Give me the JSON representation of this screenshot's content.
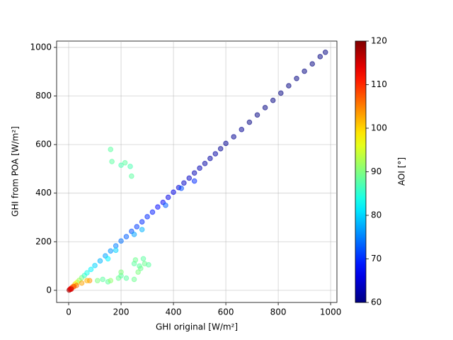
{
  "chart_data": {
    "type": "scatter",
    "x_label": "GHI original [W/m²]",
    "y_label": "GHI from POA [W/m²]",
    "colorbar_label": "AOI [°]",
    "xlim": [
      -46,
      1024
    ],
    "ylim": [
      -50,
      1026
    ],
    "xticks": [
      0,
      200,
      400,
      600,
      800,
      1000
    ],
    "yticks": [
      0,
      200,
      400,
      600,
      800,
      1000
    ],
    "clim": [
      60,
      120
    ],
    "cticks": [
      60,
      70,
      80,
      90,
      100,
      110,
      120
    ],
    "colormap": "jet",
    "grid": true,
    "x": [
      2,
      5,
      8,
      12,
      18,
      25,
      32,
      40,
      50,
      60,
      70,
      85,
      100,
      120,
      140,
      160,
      180,
      200,
      220,
      240,
      260,
      280,
      300,
      320,
      340,
      360,
      380,
      400,
      420,
      440,
      460,
      480,
      500,
      520,
      540,
      560,
      580,
      600,
      630,
      660,
      690,
      720,
      750,
      780,
      810,
      840,
      870,
      900,
      930,
      960,
      980,
      430,
      480,
      280,
      250,
      370,
      150,
      180,
      160,
      165,
      200,
      215,
      235,
      240,
      150,
      190,
      200,
      200,
      250,
      255,
      270,
      285,
      290,
      305,
      265,
      275,
      130,
      110,
      250,
      220,
      160,
      80,
      50,
      70,
      30,
      20,
      10
    ],
    "y": [
      1,
      4,
      7,
      11,
      17,
      26,
      33,
      41,
      52,
      61,
      72,
      86,
      102,
      121,
      142,
      162,
      183,
      203,
      221,
      243,
      262,
      282,
      303,
      322,
      343,
      362,
      383,
      404,
      423,
      442,
      462,
      483,
      503,
      522,
      543,
      562,
      583,
      605,
      632,
      662,
      692,
      722,
      752,
      782,
      812,
      842,
      872,
      902,
      932,
      962,
      980,
      420,
      450,
      250,
      230,
      350,
      130,
      165,
      580,
      530,
      515,
      525,
      510,
      470,
      35,
      50,
      60,
      75,
      110,
      125,
      100,
      130,
      110,
      105,
      75,
      90,
      45,
      40,
      45,
      50,
      40,
      40,
      30,
      40,
      20,
      15,
      5
    ],
    "c": [
      118,
      116,
      113,
      110,
      105,
      100,
      96,
      92,
      90,
      86,
      84,
      82,
      80,
      78,
      77,
      76,
      75,
      74,
      73,
      72,
      71,
      70,
      70,
      69,
      68,
      67,
      66,
      66,
      65,
      64,
      64,
      63,
      63,
      62,
      62,
      62,
      61,
      61,
      61,
      61,
      60,
      60,
      60,
      60,
      60,
      60,
      60,
      60,
      60,
      60,
      60,
      72,
      70,
      78,
      77,
      73,
      82,
      80,
      88,
      88,
      87,
      88,
      87,
      88,
      88,
      89,
      88,
      90,
      88,
      89,
      88,
      88,
      89,
      88,
      90,
      89,
      88,
      90,
      89,
      88,
      91,
      104,
      103,
      102,
      106,
      108,
      115
    ]
  }
}
